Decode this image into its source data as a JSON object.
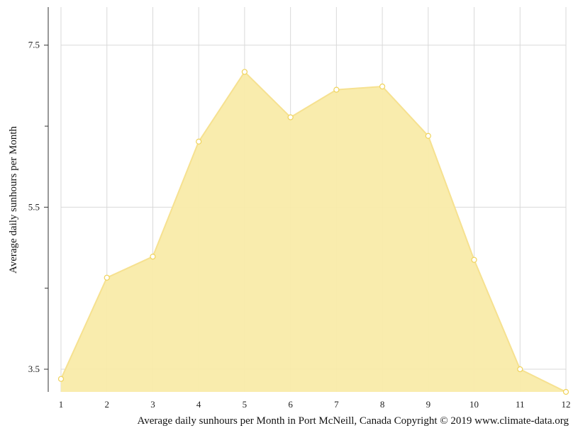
{
  "chart_data": {
    "type": "area",
    "x": [
      1,
      2,
      3,
      4,
      5,
      6,
      7,
      8,
      9,
      10,
      11,
      12
    ],
    "series": [
      {
        "values": [
          3.38,
          4.63,
          4.89,
          6.31,
          7.17,
          6.61,
          6.95,
          6.99,
          6.38,
          4.85,
          3.5,
          3.22
        ]
      }
    ],
    "x_ticks": [
      "1",
      "2",
      "3",
      "4",
      "5",
      "6",
      "7",
      "8",
      "9",
      "10",
      "11",
      "12"
    ],
    "y_ticks": [
      "7.5",
      "5.5",
      "3.5"
    ],
    "y_tick_values": [
      7.5,
      5.5,
      3.5
    ],
    "y_minor_ticks": [
      6.5,
      4.5
    ],
    "ylim": [
      3.22,
      7.97
    ],
    "xlim": [
      1,
      12
    ],
    "ylabel": "Average daily sunhours per Month",
    "xlabel": "",
    "caption": "Average daily sunhours per Month in Port McNeill, Canada Copyright © 2019 www.climate-data.org",
    "grid": true,
    "legend": "none",
    "colors": {
      "fill": "#f9eba9",
      "line": "#f6e190",
      "marker_fill": "#ffffff",
      "marker_stroke": "#f0d35b",
      "grid": "#d9d9d9",
      "axis": "#333333"
    }
  }
}
